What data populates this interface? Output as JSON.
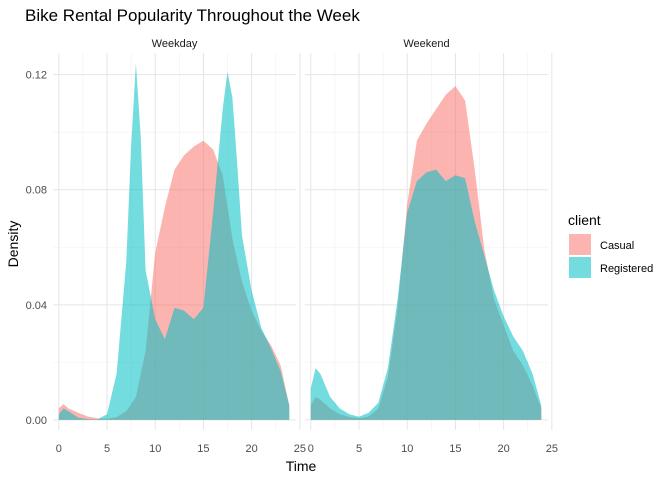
{
  "chart_data": {
    "type": "area",
    "title": "Bike Rental Popularity Throughout the Week",
    "xlabel": "Time",
    "ylabel": "Density",
    "xlim": [
      -0.6,
      24.6
    ],
    "ylim": [
      -0.0035,
      0.1275
    ],
    "x_ticks": [
      0,
      5,
      10,
      15,
      20,
      25
    ],
    "y_ticks": [
      0.0,
      0.04,
      0.08,
      0.12
    ],
    "y_tick_labels": [
      "0.00",
      "0.04",
      "0.08",
      "0.12"
    ],
    "grid": true,
    "legend": {
      "title": "client",
      "position": "right",
      "entries": [
        {
          "label": "Casual",
          "color": "#F8766D"
        },
        {
          "label": "Registered",
          "color": "#00BFC4"
        }
      ]
    },
    "colors": {
      "Casual": "#F8766D",
      "Registered": "#00BFC4"
    },
    "fill_opacity": 0.55,
    "panels": [
      {
        "label": "Weekday",
        "series": [
          {
            "name": "Casual",
            "x": [
              0,
              0.5,
              1,
              2,
              3,
              4,
              5,
              6,
              7,
              8,
              9,
              10,
              11,
              12,
              13,
              14,
              15,
              16,
              17,
              18,
              19,
              20,
              21,
              22,
              23,
              23.9
            ],
            "y": [
              0.004,
              0.0055,
              0.004,
              0.0025,
              0.0012,
              0.0006,
              0.0004,
              0.001,
              0.003,
              0.008,
              0.024,
              0.058,
              0.074,
              0.087,
              0.092,
              0.095,
              0.097,
              0.094,
              0.085,
              0.063,
              0.048,
              0.038,
              0.031,
              0.026,
              0.019,
              0.005
            ]
          },
          {
            "name": "Registered",
            "x": [
              0,
              0.5,
              1,
              2,
              3,
              4,
              5,
              6,
              7,
              7.5,
              8,
              8.5,
              9,
              10,
              11,
              12,
              13,
              14,
              15,
              16,
              17,
              17.5,
              18,
              18.5,
              19,
              20,
              21,
              22,
              23,
              23.9
            ],
            "y": [
              0.002,
              0.004,
              0.003,
              0.0008,
              0.0003,
              0.0002,
              0.002,
              0.016,
              0.055,
              0.095,
              0.124,
              0.098,
              0.052,
              0.035,
              0.028,
              0.039,
              0.038,
              0.035,
              0.039,
              0.072,
              0.108,
              0.121,
              0.112,
              0.089,
              0.064,
              0.045,
              0.032,
              0.025,
              0.017,
              0.005
            ]
          }
        ]
      },
      {
        "label": "Weekend",
        "series": [
          {
            "name": "Casual",
            "x": [
              0,
              0.5,
              1,
              2,
              3,
              4,
              5,
              6,
              7,
              8,
              9,
              10,
              11,
              12,
              13,
              14,
              15,
              16,
              17,
              18,
              19,
              20,
              21,
              22,
              23,
              23.9
            ],
            "y": [
              0.005,
              0.008,
              0.007,
              0.004,
              0.002,
              0.001,
              0.0006,
              0.0012,
              0.004,
              0.015,
              0.039,
              0.075,
              0.097,
              0.103,
              0.108,
              0.113,
              0.116,
              0.111,
              0.087,
              0.059,
              0.042,
              0.033,
              0.024,
              0.019,
              0.012,
              0.004
            ]
          },
          {
            "name": "Registered",
            "x": [
              0,
              0.5,
              1,
              2,
              3,
              4,
              5,
              6,
              7,
              8,
              9,
              10,
              11,
              12,
              13,
              14,
              15,
              16,
              17,
              18,
              19,
              20,
              21,
              22,
              23,
              23.9
            ],
            "y": [
              0.011,
              0.018,
              0.016,
              0.008,
              0.004,
              0.002,
              0.0011,
              0.0025,
              0.006,
              0.018,
              0.042,
              0.072,
              0.083,
              0.086,
              0.087,
              0.083,
              0.085,
              0.084,
              0.069,
              0.057,
              0.045,
              0.036,
              0.029,
              0.024,
              0.016,
              0.005
            ]
          }
        ]
      }
    ]
  }
}
